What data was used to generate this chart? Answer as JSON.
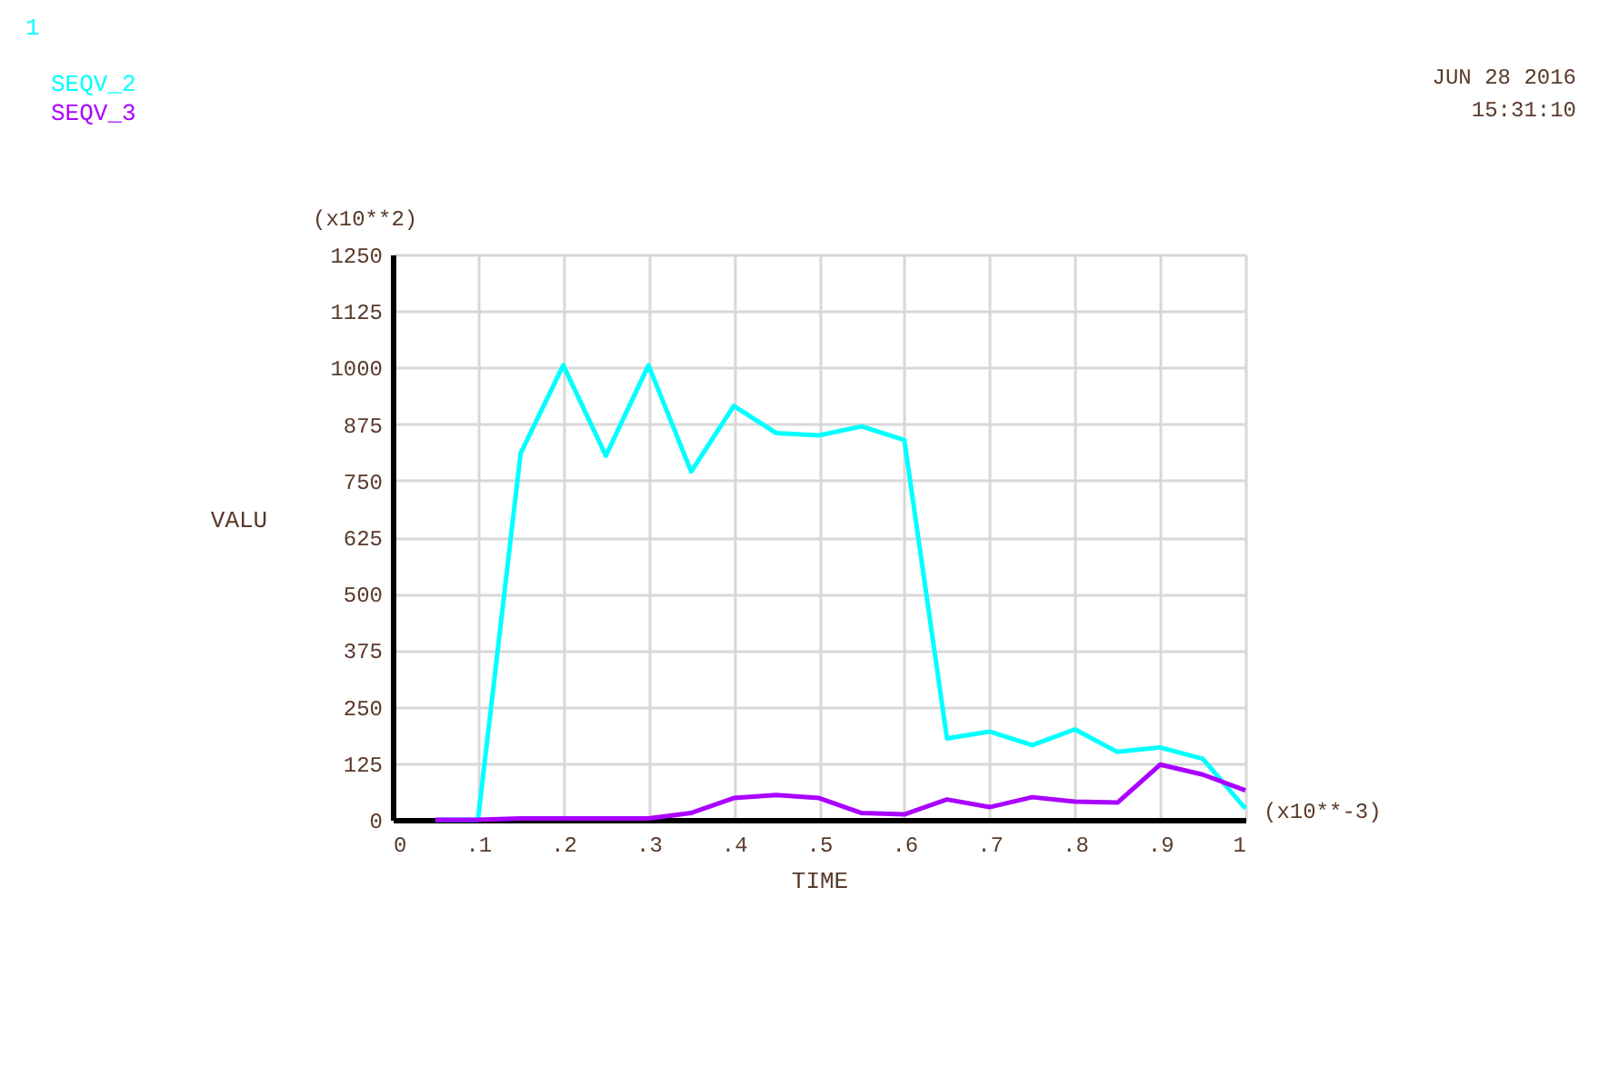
{
  "chart_data": {
    "type": "line",
    "xlabel": "TIME",
    "ylabel": "VALU",
    "annotations": [
      "1",
      "(x10**2)",
      "(x10**-3)",
      "JUN 28 2016",
      "15:31:10"
    ],
    "x": [
      0.05,
      0.1,
      0.15,
      0.2,
      0.25,
      0.3,
      0.35,
      0.4,
      0.45,
      0.5,
      0.55,
      0.6,
      0.65,
      0.7,
      0.75,
      0.8,
      0.85,
      0.9,
      0.95,
      1.0
    ],
    "series": [
      {
        "name": "SEQV_2",
        "color": "#00ffff",
        "values": [
          0,
          0,
          810,
          1005,
          805,
          1005,
          770,
          915,
          855,
          850,
          870,
          840,
          180,
          195,
          165,
          200,
          150,
          160,
          135,
          25
        ]
      },
      {
        "name": "SEQV_3",
        "color": "#aa00ff",
        "values": [
          0,
          0,
          3,
          3,
          3,
          3,
          15,
          48,
          55,
          48,
          15,
          12,
          45,
          28,
          50,
          40,
          38,
          122,
          100,
          65
        ]
      }
    ],
    "xlim": [
      0,
      1
    ],
    "xticks": [
      0,
      {
        "value": 0.1,
        "label": ".1"
      },
      {
        "value": 0.2,
        "label": ".2"
      },
      {
        "value": 0.3,
        "label": ".3"
      },
      {
        "value": 0.4,
        "label": ".4"
      },
      {
        "value": 0.5,
        "label": ".5"
      },
      {
        "value": 0.6,
        "label": ".6"
      },
      {
        "value": 0.7,
        "label": ".7"
      },
      {
        "value": 0.8,
        "label": ".8"
      },
      {
        "value": 0.9,
        "label": ".9"
      },
      1
    ],
    "ylim": [
      0,
      1250
    ],
    "yticks": [
      0,
      125,
      250,
      375,
      500,
      625,
      750,
      875,
      1000,
      1125,
      1250
    ],
    "grid": true,
    "legend": "top left",
    "line_style": "solid",
    "marker": "none"
  }
}
